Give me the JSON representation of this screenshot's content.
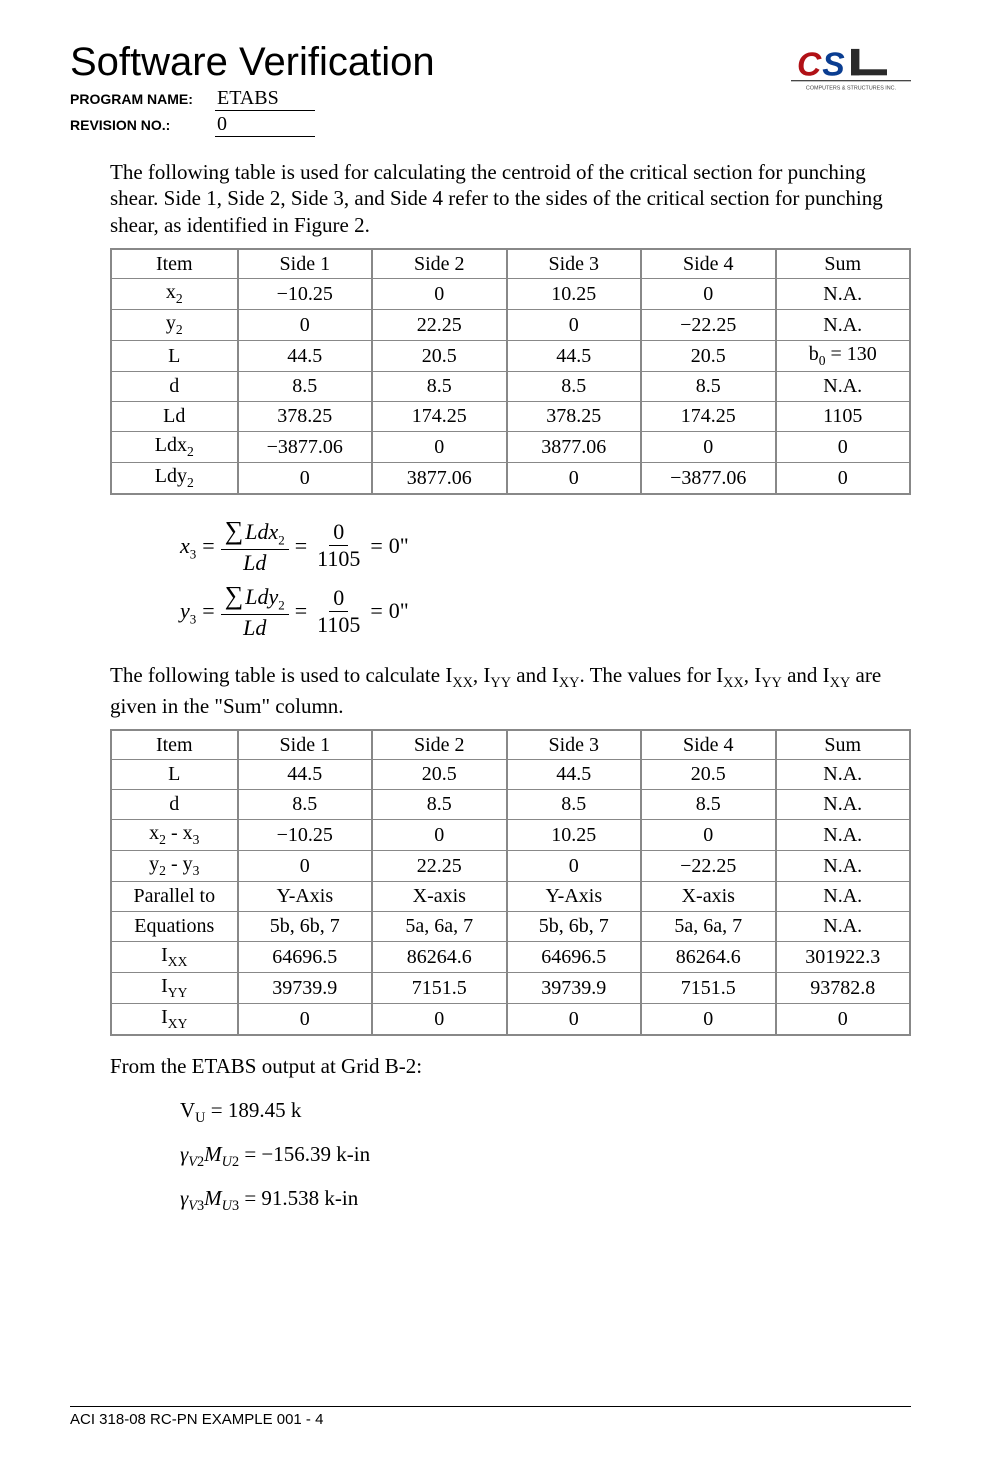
{
  "header": {
    "title": "Software Verification",
    "program_label": "PROGRAM NAME:",
    "program_value": "ETABS",
    "revision_label": "REVISION NO.:",
    "revision_value": "0",
    "logo_tagline": "COMPUTERS & STRUCTURES INC.",
    "logo_text": "CSi",
    "logo_colors": {
      "c": "#b11116",
      "s": "#0a3d91",
      "i": "#2a2a2a",
      "tagline": "#444444"
    }
  },
  "intro_para": "The following table is used for calculating the centroid of the critical section for punching shear.  Side 1, Side 2, Side 3, and Side 4 refer to the sides of the critical section for punching shear, as identified in Figure 2.",
  "table1": {
    "columns": [
      "Item",
      "Side 1",
      "Side 2",
      "Side 3",
      "Side 4",
      "Sum"
    ],
    "rows": [
      {
        "label_html": "x<sub>2</sub>",
        "cells": [
          "−10.25",
          "0",
          "10.25",
          "0",
          "N.A."
        ]
      },
      {
        "label_html": "y<sub>2</sub>",
        "cells": [
          "0",
          "22.25",
          "0",
          "−22.25",
          "N.A."
        ]
      },
      {
        "label_html": "L",
        "cells": [
          "44.5",
          "20.5",
          "44.5",
          "20.5",
          "b<sub>0</sub> = 130"
        ]
      },
      {
        "label_html": "d",
        "cells": [
          "8.5",
          "8.5",
          "8.5",
          "8.5",
          "N.A."
        ]
      },
      {
        "label_html": "Ld",
        "cells": [
          "378.25",
          "174.25",
          "378.25",
          "174.25",
          "1105"
        ]
      },
      {
        "label_html": "Ldx<sub>2</sub>",
        "cells": [
          "−3877.06",
          "0",
          "3877.06",
          "0",
          "0"
        ]
      },
      {
        "label_html": "Ldy<sub>2</sub>",
        "cells": [
          "0",
          "3877.06",
          "0",
          "−3877.06",
          "0"
        ]
      }
    ]
  },
  "equations": {
    "x3": {
      "lhs_html": "x<span class='sub'>3</span>",
      "num_html": "Ldx<span class='sub'>2</span>",
      "den": "Ld",
      "mid_num": "0",
      "mid_den": "1105",
      "result": "0\""
    },
    "y3": {
      "lhs_html": "y<span class='sub'>3</span>",
      "num_html": "Ldy<span class='sub'>2</span>",
      "den": "Ld",
      "mid_num": "0",
      "mid_den": "1105",
      "result": "0\""
    }
  },
  "mid_para_html": "The following table is used to calculate I<sub>XX</sub>, I<sub>YY</sub> and I<sub>XY</sub>.  The values for I<sub>XX</sub>, I<sub>YY</sub> and I<sub>XY</sub> are given in the \"Sum\" column.",
  "table2": {
    "columns": [
      "Item",
      "Side 1",
      "Side 2",
      "Side 3",
      "Side 4",
      "Sum"
    ],
    "rows": [
      {
        "label_html": "L",
        "cells": [
          "44.5",
          "20.5",
          "44.5",
          "20.5",
          "N.A."
        ]
      },
      {
        "label_html": "d",
        "cells": [
          "8.5",
          "8.5",
          "8.5",
          "8.5",
          "N.A."
        ]
      },
      {
        "label_html": "x<sub>2</sub> - x<sub>3</sub>",
        "cells": [
          "−10.25",
          "0",
          "10.25",
          "0",
          "N.A."
        ]
      },
      {
        "label_html": "y<sub>2</sub> - y<sub>3</sub>",
        "cells": [
          "0",
          "22.25",
          "0",
          "−22.25",
          "N.A."
        ]
      },
      {
        "label_html": "Parallel to",
        "cells": [
          "Y-Axis",
          "X-axis",
          "Y-Axis",
          "X-axis",
          "N.A."
        ]
      },
      {
        "label_html": "Equations",
        "cells": [
          "5b, 6b, 7",
          "5a, 6a, 7",
          "5b, 6b, 7",
          "5a, 6a, 7",
          "N.A."
        ]
      },
      {
        "label_html": "I<sub>XX</sub>",
        "cells": [
          "64696.5",
          "86264.6",
          "64696.5",
          "86264.6",
          "301922.3"
        ]
      },
      {
        "label_html": "I<sub>YY</sub>",
        "cells": [
          "39739.9",
          "7151.5",
          "39739.9",
          "7151.5",
          "93782.8"
        ]
      },
      {
        "label_html": "I<sub>XY</sub>",
        "cells": [
          "0",
          "0",
          "0",
          "0",
          "0"
        ]
      }
    ]
  },
  "output": {
    "lead": "From the ETABS output at Grid B-2:",
    "lines_html": [
      "V<sub>U</sub> = 189.45 k",
      "<i>γ</i><sub><i>V</i>2</sub><i>M</i><sub><i>U</i>2</sub> = −156.39 k-in",
      "<i>γ</i><sub><i>V</i>3</sub><i>M</i><sub><i>U</i>3</sub> = 91.538 k-in"
    ]
  },
  "footer": "ACI 318-08 RC-PN EXAMPLE 001 - 4"
}
